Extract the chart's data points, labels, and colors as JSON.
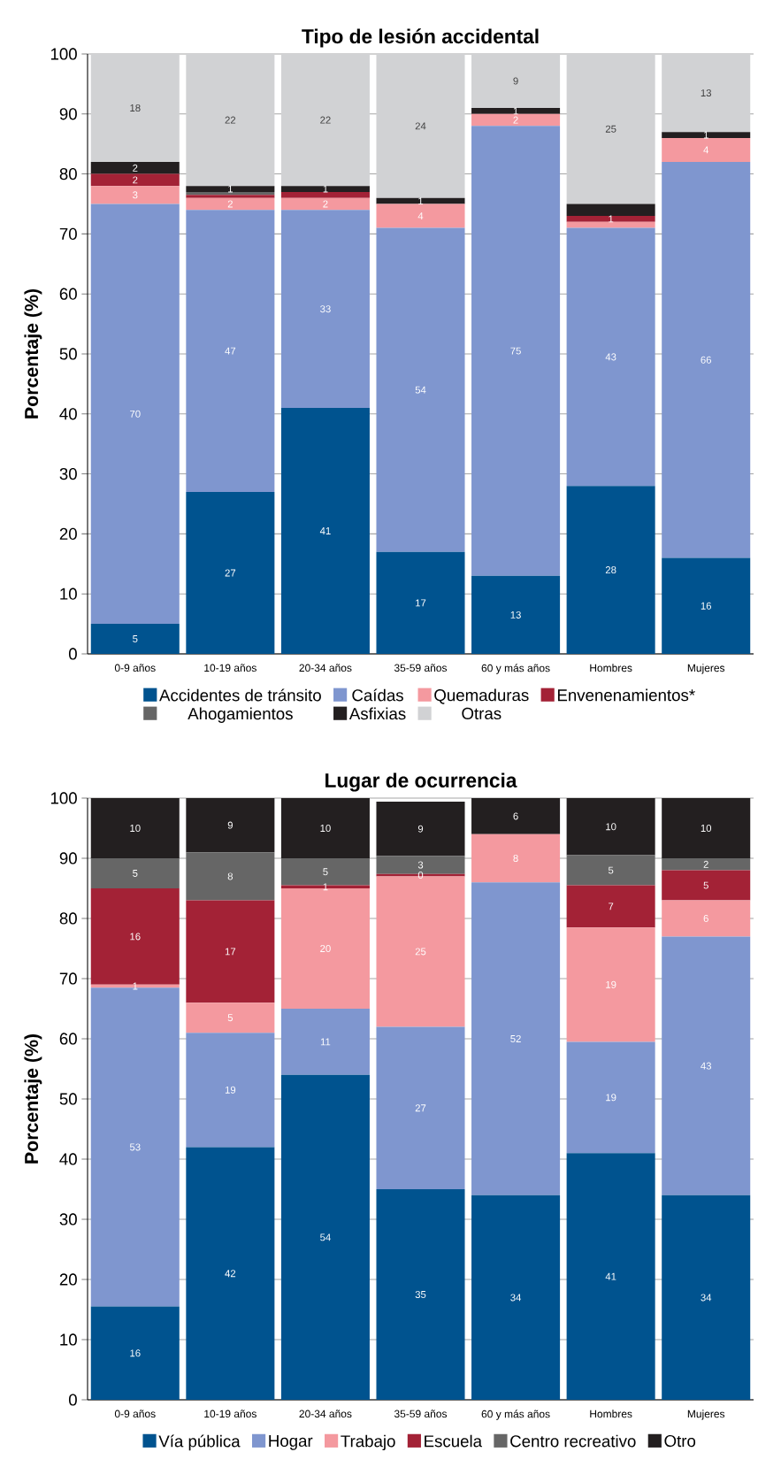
{
  "chart_data": [
    {
      "type": "bar",
      "title": "Tipo de lesión accidental",
      "ylabel": "Porcentaje (%)",
      "stacked": true,
      "categories": [
        "0-9 años",
        "10-19 años",
        "20-34 años",
        "35-59 años",
        "60 y más años",
        "Hombres",
        "Mujeres"
      ],
      "series": [
        {
          "name": "Accidentes de tránsito",
          "color": "#00538f",
          "values": [
            5,
            27,
            41,
            17,
            13,
            28,
            16
          ],
          "value_labels": [
            "5",
            "27",
            "41",
            "17",
            "13",
            "28",
            "16"
          ]
        },
        {
          "name": "Caídas",
          "color": "#7f96cf",
          "values": [
            70,
            47,
            33,
            54,
            75,
            43,
            66
          ],
          "value_labels": [
            "70",
            "47",
            "33",
            "54",
            "75",
            "43",
            "66"
          ]
        },
        {
          "name": "Quemaduras",
          "color": "#f4999f",
          "values": [
            3,
            2,
            2,
            4,
            2,
            1,
            4
          ],
          "value_labels": [
            "3",
            "2",
            "2",
            "4",
            "2",
            null,
            "4"
          ]
        },
        {
          "name": "Envenenamientos*",
          "color": "#a32236",
          "values": [
            2,
            0.5,
            1,
            0,
            0,
            1,
            0
          ],
          "value_labels": [
            "2",
            null,
            null,
            null,
            null,
            "1",
            null
          ]
        },
        {
          "name": "Ahogamientos",
          "color": "#666666",
          "values": [
            0,
            0.5,
            0,
            0,
            0,
            0,
            0
          ],
          "value_labels": [
            null,
            null,
            null,
            null,
            null,
            null,
            null
          ]
        },
        {
          "name": "Asfixias",
          "color": "#231f20",
          "values": [
            2,
            1,
            1,
            1,
            1,
            2,
            1
          ],
          "value_labels": [
            "2",
            "1",
            "1",
            "1",
            "1",
            null,
            "1"
          ]
        },
        {
          "name": "Otras",
          "color": "#d1d2d4",
          "values": [
            18,
            22,
            22,
            24,
            9,
            25,
            13
          ],
          "value_labels": [
            "18",
            "22",
            "22",
            "24",
            "9",
            "25",
            "13"
          ]
        }
      ],
      "ylim": [
        0,
        100
      ],
      "yticks": [
        0,
        10,
        20,
        30,
        40,
        50,
        60,
        70,
        80,
        90,
        100
      ],
      "grid": "y",
      "legend": "bottom"
    },
    {
      "type": "bar",
      "title": "Lugar de ocurrencia",
      "ylabel": "Porcentaje (%)",
      "stacked": true,
      "categories": [
        "0-9 años",
        "10-19 años",
        "20-34 años",
        "35-59 años",
        "60 y más años",
        "Hombres",
        "Mujeres"
      ],
      "series": [
        {
          "name": "Vía pública",
          "color": "#00538f",
          "values": [
            15.5,
            42,
            54,
            35,
            34,
            41,
            34
          ],
          "value_labels": [
            "16",
            "42",
            "54",
            "35",
            "34",
            "41",
            "34"
          ]
        },
        {
          "name": "Hogar",
          "color": "#7f96cf",
          "values": [
            53,
            19,
            11,
            27,
            52,
            18.5,
            43
          ],
          "value_labels": [
            "53",
            "19",
            "11",
            "27",
            "52",
            "19",
            "43"
          ]
        },
        {
          "name": "Trabajo",
          "color": "#f4999f",
          "values": [
            0.5,
            5,
            20,
            25,
            8,
            19,
            6
          ],
          "value_labels": [
            "1",
            "5",
            "20",
            "25",
            "8",
            "19",
            "6"
          ]
        },
        {
          "name": "Escuela",
          "color": "#a32236",
          "values": [
            16,
            17,
            0.5,
            0.4,
            0,
            7,
            5
          ],
          "value_labels": [
            "16",
            "17",
            "1",
            "0",
            null,
            "7",
            "5"
          ]
        },
        {
          "name": "Centro recreativo",
          "color": "#666666",
          "values": [
            5,
            8,
            4.5,
            3,
            0,
            5,
            2
          ],
          "value_labels": [
            "5",
            "8",
            "5",
            "3",
            null,
            "5",
            "2"
          ]
        },
        {
          "name": "Otro",
          "color": "#231f20",
          "values": [
            10,
            9,
            10,
            9,
            6,
            9.5,
            10
          ],
          "value_labels": [
            "10",
            "9",
            "10",
            "9",
            "6",
            "10",
            "10"
          ]
        }
      ],
      "ylim": [
        0,
        100
      ],
      "yticks": [
        0,
        10,
        20,
        30,
        40,
        50,
        60,
        70,
        80,
        90,
        100
      ],
      "grid": "y",
      "legend": "bottom"
    }
  ]
}
